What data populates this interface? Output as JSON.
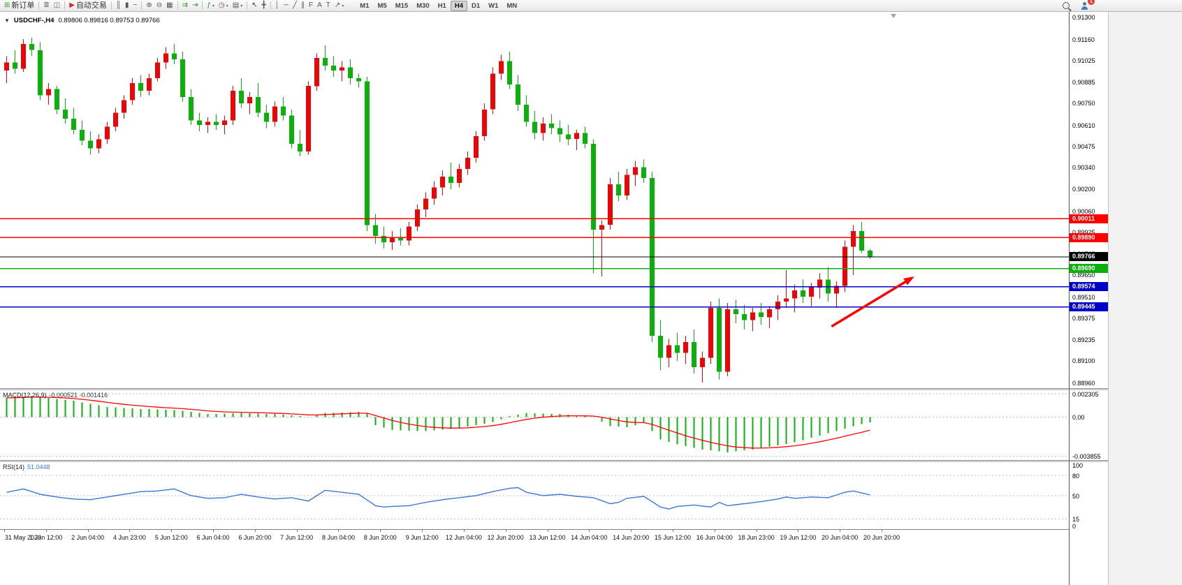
{
  "colors": {
    "up_candle": "#ea0606",
    "down_candle": "#0cb00c",
    "macd_bar": "#0cb00c",
    "macd_signal": "#ff0000",
    "rsi_line": "#3c78d8",
    "grid_dash": "#bdbdbd"
  },
  "toolbar": {
    "notification_count": "1",
    "timeframes": [
      "M1",
      "M5",
      "M15",
      "M30",
      "H1",
      "H4",
      "D1",
      "W1",
      "MN"
    ],
    "active_timeframe": "H4",
    "items": [
      {
        "name": "new-order-button",
        "icon": "new-order-icon",
        "glyph": "⊞",
        "glyph_color": "#2f9e2f",
        "label": "新订单"
      },
      {
        "sep": true
      },
      {
        "name": "market-watch-button",
        "icon": "market-watch-icon",
        "glyph": "≣",
        "glyph_color": "#666666"
      },
      {
        "name": "navigator-button",
        "icon": "navigator-icon",
        "glyph": "◫",
        "glyph_color": "#666666"
      },
      {
        "sep": true
      },
      {
        "name": "auto-trading-button",
        "icon": "auto-trading-icon",
        "glyph": "▶",
        "glyph_color": "#d32f2f",
        "label": "自动交易"
      },
      {
        "sep": true
      },
      {
        "name": "bars-mode-button",
        "icon": "bars-chart-icon",
        "glyph": "║",
        "glyph_color": "#555555"
      },
      {
        "name": "candles-mode-button",
        "icon": "candlestick-chart-icon",
        "glyph": "▮",
        "glyph_color": "#555555"
      },
      {
        "name": "line-mode-button",
        "icon": "line-chart-icon",
        "glyph": "~",
        "glyph_color": "#555555"
      },
      {
        "sep": true
      },
      {
        "name": "zoom-in-button",
        "icon": "zoom-in-icon",
        "glyph": "⊕",
        "glyph_color": "#555555"
      },
      {
        "name": "zoom-out-button",
        "icon": "zoom-out-icon",
        "glyph": "⊖",
        "glyph_color": "#555555"
      },
      {
        "name": "tile-windows-button",
        "icon": "tile-windows-icon",
        "glyph": "▦",
        "glyph_color": "#555555"
      },
      {
        "sep": true
      },
      {
        "name": "auto-scroll-button",
        "icon": "auto-scroll-icon",
        "glyph": "⇉",
        "glyph_color": "#2f9e2f"
      },
      {
        "name": "chart-shift-button",
        "icon": "chart-shift-icon",
        "glyph": "⇥",
        "glyph_color": "#2f9e2f"
      },
      {
        "sep": true
      },
      {
        "name": "indicators-button",
        "icon": "indicators-icon",
        "glyph": "ƒ",
        "glyph_color": "#2f9e2f",
        "caret": true
      },
      {
        "name": "periods-button",
        "icon": "clock-icon",
        "glyph": "◷",
        "glyph_color": "#555555",
        "caret": true
      },
      {
        "name": "templates-button",
        "icon": "template-icon",
        "glyph": "▤",
        "glyph_color": "#555555",
        "caret": true
      },
      {
        "sep": true
      },
      {
        "name": "cursor-button",
        "icon": "cursor-icon",
        "glyph": "↖",
        "glyph_color": "#333333"
      },
      {
        "name": "crosshair-button",
        "icon": "crosshair-icon",
        "glyph": "╋",
        "glyph_color": "#555555"
      },
      {
        "sep": true
      },
      {
        "name": "vertical-line-button",
        "icon": "vertical-line-icon",
        "glyph": "│",
        "glyph_color": "#555555"
      },
      {
        "name": "horizontal-line-button",
        "icon": "horizontal-line-icon",
        "glyph": "─",
        "glyph_color": "#555555"
      },
      {
        "name": "trendline-button",
        "icon": "trendline-icon",
        "glyph": "╱",
        "glyph_color": "#555555"
      },
      {
        "name": "channel-button",
        "icon": "channel-icon",
        "glyph": "∥",
        "glyph_color": "#555555"
      },
      {
        "name": "fibonacci-button",
        "icon": "fibonacci-icon",
        "glyph": "F",
        "glyph_color": "#555555"
      },
      {
        "name": "text-button",
        "icon": "text-icon",
        "glyph": "A",
        "glyph_color": "#555555"
      },
      {
        "name": "text-label-button",
        "icon": "text-label-icon",
        "glyph": "T",
        "glyph_color": "#555555"
      },
      {
        "name": "arrows-button",
        "icon": "arrow-objects-icon",
        "glyph": "↗",
        "glyph_color": "#555555",
        "caret": true
      }
    ]
  },
  "chart": {
    "dropdown_marker": "▼",
    "title": "USDCHF-,H4",
    "ohlc_text": "0.89806 0.89816 0.89753 0.89766"
  },
  "macd_label": "MACD(12,26,9)",
  "macd_values": "-0.000521 -0.001416",
  "rsi_label": "RSI(14)",
  "rsi_value": "51.0448",
  "chart_data": {
    "type": "candlestick",
    "symbol": "USDCHF-",
    "timeframe": "H4",
    "current": {
      "open": 0.89806,
      "high": 0.89816,
      "low": 0.89753,
      "close": 0.89766
    },
    "price_axis": {
      "view_max": 0.91335,
      "view_min": 0.88925,
      "gridlines": [
        "0.91300",
        "0.91160",
        "0.91025",
        "0.90885",
        "0.90750",
        "0.90610",
        "0.90475",
        "0.90340",
        "0.90200",
        "0.90060",
        "0.89925",
        "0.89785",
        "0.89650",
        "0.89510",
        "0.89375",
        "0.89235",
        "0.89100",
        "0.88960"
      ]
    },
    "hlines": [
      {
        "price": 0.90011,
        "label": "0.90011",
        "color": "#ff0000"
      },
      {
        "price": 0.8989,
        "label": "0.89890",
        "color": "#ff0000"
      },
      {
        "price": 0.89766,
        "label": "0.89766",
        "color": "#000000",
        "current": true
      },
      {
        "price": 0.8969,
        "label": "0.89690",
        "color": "#0cb00c"
      },
      {
        "price": 0.89574,
        "label": "0.89574",
        "color": "#0000c8"
      },
      {
        "price": 0.89445,
        "label": "0.89445",
        "color": "#0000c8"
      }
    ],
    "candles": [
      [
        0.9096,
        0.9105,
        0.9088,
        0.9101
      ],
      [
        0.9101,
        0.9109,
        0.9094,
        0.9097
      ],
      [
        0.9097,
        0.9116,
        0.9095,
        0.9113
      ],
      [
        0.9113,
        0.9117,
        0.9105,
        0.9109
      ],
      [
        0.9109,
        0.9114,
        0.9077,
        0.908
      ],
      [
        0.908,
        0.9088,
        0.9074,
        0.9084
      ],
      [
        0.9084,
        0.9086,
        0.9068,
        0.9071
      ],
      [
        0.9071,
        0.9078,
        0.9062,
        0.9065
      ],
      [
        0.9065,
        0.9072,
        0.9055,
        0.9058
      ],
      [
        0.9058,
        0.9064,
        0.9048,
        0.9051
      ],
      [
        0.9051,
        0.9057,
        0.9042,
        0.9046
      ],
      [
        0.9046,
        0.9055,
        0.9043,
        0.9052
      ],
      [
        0.9052,
        0.9063,
        0.9049,
        0.906
      ],
      [
        0.906,
        0.9072,
        0.9057,
        0.9069
      ],
      [
        0.9069,
        0.908,
        0.9065,
        0.9077
      ],
      [
        0.9077,
        0.9091,
        0.9074,
        0.9088
      ],
      [
        0.9088,
        0.9093,
        0.9079,
        0.9083
      ],
      [
        0.9083,
        0.9094,
        0.908,
        0.9091
      ],
      [
        0.9091,
        0.9104,
        0.9089,
        0.9101
      ],
      [
        0.9101,
        0.9111,
        0.9097,
        0.9107
      ],
      [
        0.9107,
        0.9113,
        0.91,
        0.9103
      ],
      [
        0.9103,
        0.9108,
        0.9076,
        0.9079
      ],
      [
        0.9079,
        0.9084,
        0.9061,
        0.9064
      ],
      [
        0.9064,
        0.9069,
        0.9057,
        0.9061
      ],
      [
        0.9061,
        0.9066,
        0.9056,
        0.9063
      ],
      [
        0.9063,
        0.9068,
        0.9058,
        0.9061
      ],
      [
        0.9061,
        0.9067,
        0.9055,
        0.9064
      ],
      [
        0.9064,
        0.9086,
        0.9061,
        0.9083
      ],
      [
        0.9083,
        0.9091,
        0.9072,
        0.9075
      ],
      [
        0.9075,
        0.9082,
        0.9068,
        0.9079
      ],
      [
        0.9079,
        0.9088,
        0.9066,
        0.9069
      ],
      [
        0.9069,
        0.9074,
        0.9059,
        0.9063
      ],
      [
        0.9063,
        0.9076,
        0.906,
        0.9073
      ],
      [
        0.9073,
        0.9079,
        0.9064,
        0.9067
      ],
      [
        0.9067,
        0.9071,
        0.9046,
        0.9049
      ],
      [
        0.9049,
        0.9058,
        0.9041,
        0.9044
      ],
      [
        0.9044,
        0.9089,
        0.9042,
        0.9086
      ],
      [
        0.9086,
        0.9107,
        0.9083,
        0.9104
      ],
      [
        0.9104,
        0.9112,
        0.9096,
        0.9099
      ],
      [
        0.9099,
        0.9105,
        0.9092,
        0.9096
      ],
      [
        0.9096,
        0.9102,
        0.9089,
        0.9098
      ],
      [
        0.9098,
        0.9103,
        0.9087,
        0.9091
      ],
      [
        0.9091,
        0.9094,
        0.9085,
        0.9089
      ],
      [
        0.9089,
        0.9092,
        0.8993,
        0.8997
      ],
      [
        0.8997,
        0.9004,
        0.8985,
        0.899
      ],
      [
        0.899,
        0.8996,
        0.8982,
        0.8986
      ],
      [
        0.8986,
        0.8993,
        0.8981,
        0.8989
      ],
      [
        0.8989,
        0.8995,
        0.8984,
        0.8987
      ],
      [
        0.8987,
        0.8999,
        0.8984,
        0.8996
      ],
      [
        0.8996,
        0.901,
        0.8993,
        0.9007
      ],
      [
        0.9007,
        0.9018,
        0.9002,
        0.9014
      ],
      [
        0.9014,
        0.9025,
        0.901,
        0.9021
      ],
      [
        0.9021,
        0.9032,
        0.9016,
        0.9028
      ],
      [
        0.9028,
        0.9037,
        0.902,
        0.9024
      ],
      [
        0.9024,
        0.9036,
        0.9021,
        0.9033
      ],
      [
        0.9033,
        0.9044,
        0.9029,
        0.904
      ],
      [
        0.904,
        0.9057,
        0.9037,
        0.9054
      ],
      [
        0.9054,
        0.9075,
        0.9051,
        0.9071
      ],
      [
        0.9071,
        0.9098,
        0.9068,
        0.9094
      ],
      [
        0.9094,
        0.9106,
        0.909,
        0.9102
      ],
      [
        0.9102,
        0.9108,
        0.9084,
        0.9087
      ],
      [
        0.9087,
        0.9093,
        0.907,
        0.9074
      ],
      [
        0.9074,
        0.908,
        0.906,
        0.9063
      ],
      [
        0.9063,
        0.907,
        0.9052,
        0.9056
      ],
      [
        0.9056,
        0.9066,
        0.9051,
        0.9062
      ],
      [
        0.9062,
        0.9068,
        0.9055,
        0.9059
      ],
      [
        0.9059,
        0.9064,
        0.905,
        0.9055
      ],
      [
        0.9055,
        0.9061,
        0.9048,
        0.9052
      ],
      [
        0.9052,
        0.9058,
        0.9045,
        0.9056
      ],
      [
        0.9056,
        0.906,
        0.9046,
        0.9049
      ],
      [
        0.9049,
        0.9052,
        0.8966,
        0.8994
      ],
      [
        0.8994,
        0.9,
        0.8964,
        0.8997
      ],
      [
        0.8997,
        0.9027,
        0.8994,
        0.9023
      ],
      [
        0.9023,
        0.9031,
        0.9012,
        0.9016
      ],
      [
        0.9016,
        0.9033,
        0.9013,
        0.9029
      ],
      [
        0.9029,
        0.9038,
        0.9022,
        0.9034
      ],
      [
        0.9034,
        0.9039,
        0.9024,
        0.9027
      ],
      [
        0.9027,
        0.9031,
        0.8922,
        0.8926
      ],
      [
        0.8926,
        0.8936,
        0.8904,
        0.8912
      ],
      [
        0.8912,
        0.8924,
        0.8906,
        0.892
      ],
      [
        0.892,
        0.8928,
        0.891,
        0.8915
      ],
      [
        0.8915,
        0.8926,
        0.8908,
        0.8922
      ],
      [
        0.8922,
        0.893,
        0.8902,
        0.8906
      ],
      [
        0.8906,
        0.8916,
        0.8896,
        0.8912
      ],
      [
        0.8912,
        0.8948,
        0.8908,
        0.8944
      ],
      [
        0.8944,
        0.895,
        0.8898,
        0.8903
      ],
      [
        0.8903,
        0.8947,
        0.89,
        0.8943
      ],
      [
        0.8943,
        0.8949,
        0.8934,
        0.894
      ],
      [
        0.894,
        0.8946,
        0.893,
        0.8936
      ],
      [
        0.8936,
        0.8944,
        0.8929,
        0.8941
      ],
      [
        0.8941,
        0.8947,
        0.8933,
        0.8938
      ],
      [
        0.8938,
        0.8945,
        0.8931,
        0.8943
      ],
      [
        0.8943,
        0.8952,
        0.8936,
        0.8948
      ],
      [
        0.8948,
        0.8968,
        0.8944,
        0.895
      ],
      [
        0.895,
        0.8959,
        0.8941,
        0.8955
      ],
      [
        0.8955,
        0.8962,
        0.8947,
        0.8951
      ],
      [
        0.8951,
        0.896,
        0.8945,
        0.8957
      ],
      [
        0.8957,
        0.8966,
        0.895,
        0.8962
      ],
      [
        0.8962,
        0.897,
        0.8948,
        0.8953
      ],
      [
        0.8953,
        0.8961,
        0.8944,
        0.8958
      ],
      [
        0.8958,
        0.8987,
        0.8954,
        0.8983
      ],
      [
        0.8983,
        0.8997,
        0.8965,
        0.8993
      ],
      [
        0.8993,
        0.8999,
        0.8979,
        0.89806
      ],
      [
        0.89806,
        0.89816,
        0.89753,
        0.89766
      ]
    ],
    "time_labels": [
      "31 May 2023",
      "1 Jun 12:00",
      "2 Jun 04:00",
      "4 Jun 23:00",
      "5 Jun 12:00",
      "6 Jun 04:00",
      "6 Jun 20:00",
      "7 Jun 12:00",
      "8 Jun 04:00",
      "8 Jun 20:00",
      "9 Jun 12:00",
      "12 Jun 04:00",
      "12 Jun 20:00",
      "13 Jun 12:00",
      "14 Jun 04:00",
      "14 Jun 20:00",
      "15 Jun 12:00",
      "16 Jun 04:00",
      "18 Jun 23:00",
      "19 Jun 12:00",
      "20 Jun 04:00",
      "20 Jun 20:00"
    ],
    "macd": {
      "params": "12,26,9",
      "value": -0.000521,
      "signal_value": -0.001416,
      "axis_labels": [
        "0.002305",
        "0.00",
        "-0.003855"
      ],
      "axis_values": [
        0.002305,
        0,
        -0.003855
      ],
      "scale": {
        "max": 0.00265,
        "min": -0.00425
      },
      "histogram": [
        0.0019,
        0.00197,
        0.00203,
        0.0021,
        0.002,
        0.0019,
        0.0018,
        0.0017,
        0.0016,
        0.00145,
        0.0013,
        0.00115,
        0.001,
        0.00095,
        0.0009,
        0.00085,
        0.0008,
        0.00078,
        0.00075,
        0.00072,
        0.0007,
        0.0006,
        0.0005,
        0.0004,
        0.0003,
        0.00032,
        0.00035,
        0.00038,
        0.0004,
        0.00038,
        0.00035,
        0.00032,
        0.0003,
        0.00022,
        0.00015,
        8e-05,
        0.0,
        0.0002,
        0.0004,
        0.00042,
        0.00045,
        0.00048,
        0.0005,
        0.0004,
        -0.0008,
        -0.00105,
        -0.0013,
        -0.00132,
        -0.00135,
        -0.00138,
        -0.0014,
        -0.00132,
        -0.00125,
        -0.00118,
        -0.0011,
        -0.00095,
        -0.0008,
        -0.00065,
        -0.0005,
        -0.0002,
        0.0001,
        0.00025,
        0.0004,
        0.00038,
        0.00035,
        0.00032,
        0.0003,
        0.00022,
        0.00015,
        8e-05,
        0.0,
        -0.00045,
        -0.0009,
        -0.00095,
        -0.001,
        -0.0008,
        -0.0006,
        -0.0014,
        -0.0022,
        -0.00245,
        -0.0027,
        -0.00287,
        -0.00303,
        -0.0032,
        -0.0033,
        -0.0034,
        -0.0035,
        -0.0034,
        -0.0033,
        -0.0032,
        -0.0031,
        -0.00295,
        -0.0028,
        -0.00265,
        -0.0025,
        -0.00228,
        -0.00205,
        -0.00183,
        -0.0016,
        -0.00137,
        -0.00113,
        -0.0009,
        -0.00071,
        -0.000521
      ]
    },
    "rsi": {
      "period": 14,
      "value": 51.0448,
      "axis_labels": [
        "100",
        "80",
        "50",
        "15",
        "0"
      ],
      "levels": [
        80,
        50,
        15
      ],
      "values": [
        55,
        57.5,
        60,
        56,
        52,
        50,
        48,
        46.5,
        45,
        44.5,
        44,
        46,
        48,
        50,
        52,
        54,
        56,
        56.5,
        57,
        58.5,
        60,
        55,
        50,
        48,
        46,
        46.5,
        47,
        49.5,
        52,
        50,
        48,
        46.5,
        45,
        46,
        47,
        44.5,
        42,
        50,
        58,
        56.5,
        55,
        53.5,
        52,
        43.5,
        35,
        33,
        34,
        34.5,
        35,
        37.5,
        40,
        42,
        44,
        45.5,
        47,
        48.5,
        50,
        53,
        56,
        58.5,
        61,
        62,
        55,
        52.5,
        50,
        51,
        52,
        50.5,
        49,
        48,
        47,
        42.5,
        38,
        40,
        46,
        47.5,
        49,
        41,
        33,
        30,
        34,
        35,
        36,
        34.5,
        33,
        40,
        35,
        36.5,
        38,
        39.5,
        41,
        43,
        45,
        48,
        46,
        47,
        48,
        47.5,
        47,
        51,
        55,
        57,
        54,
        51.0
      ]
    },
    "arrow": {
      "x1_frac": 0.778,
      "price1": 0.8932,
      "x2_frac": 0.851,
      "price2": 0.89622,
      "color": "#ff0000"
    },
    "shift_marker_frac": 0.836
  }
}
